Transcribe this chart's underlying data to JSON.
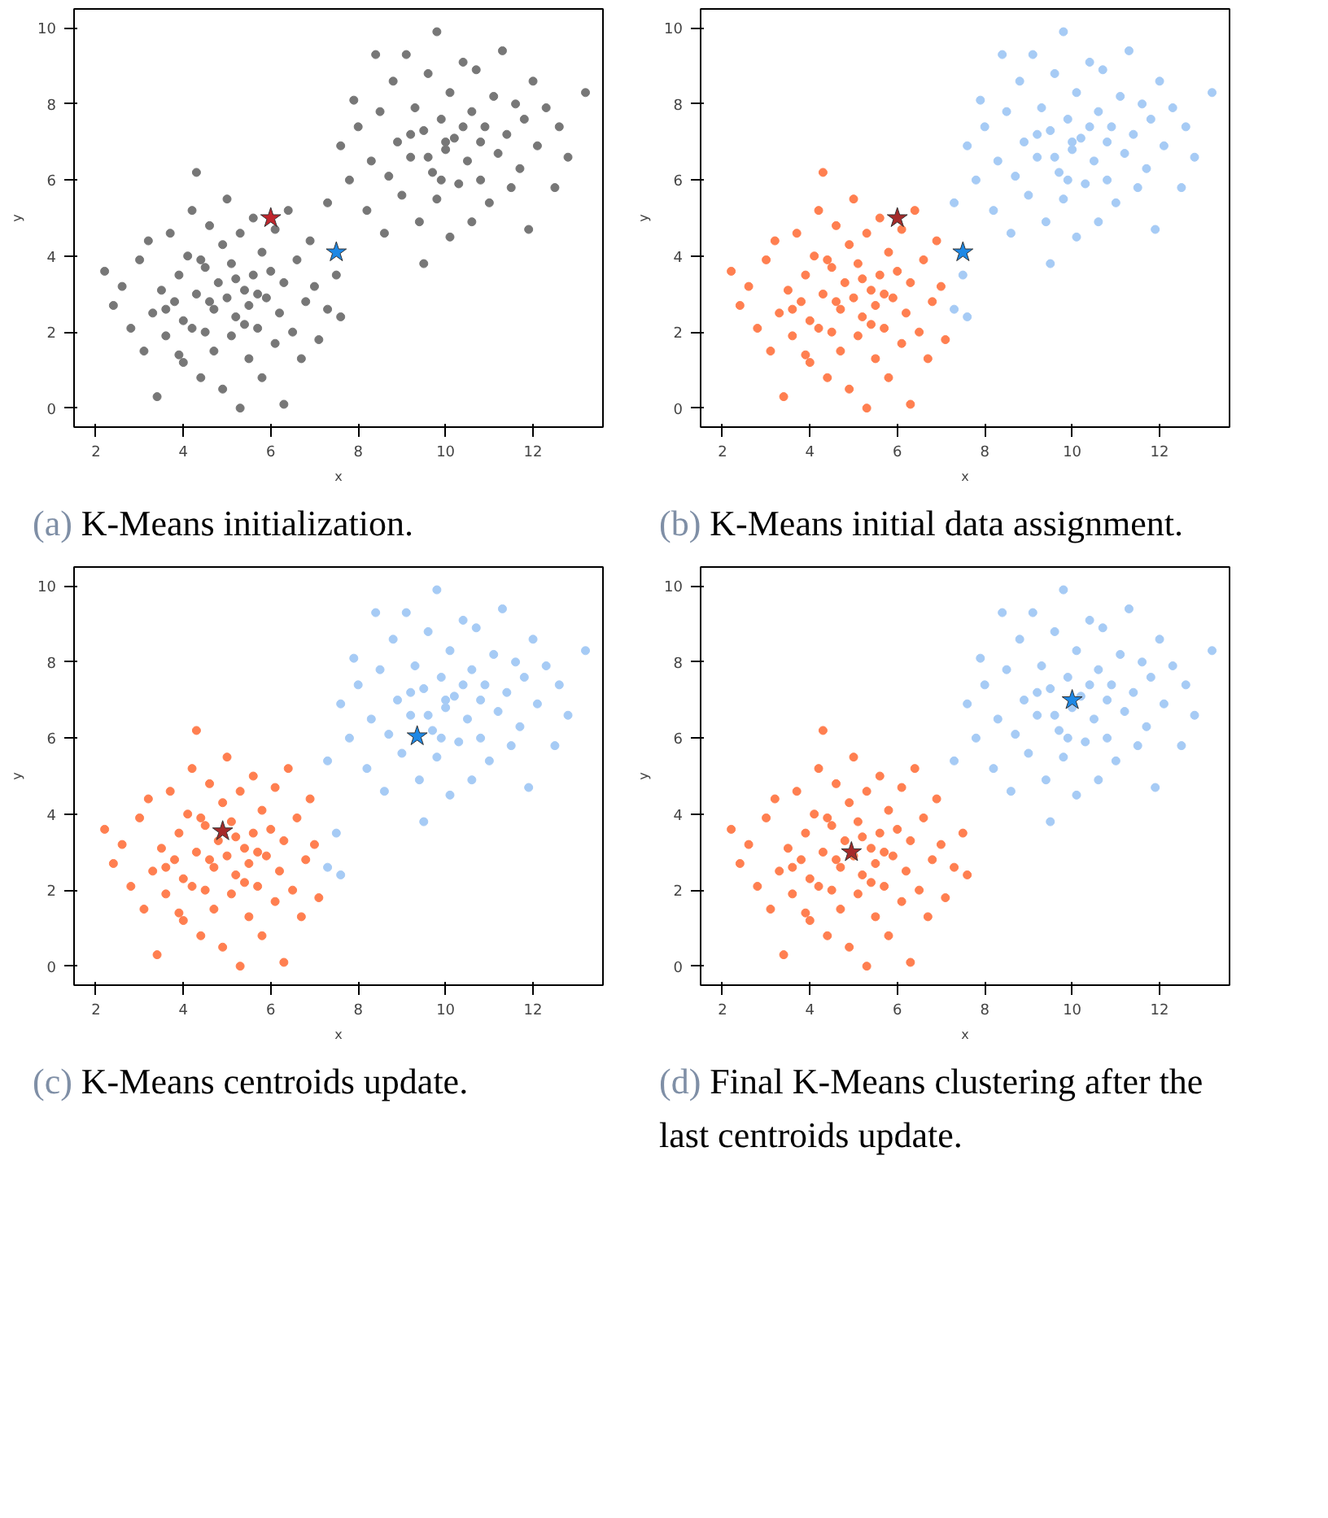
{
  "chart_data": [
    {
      "type": "scatter",
      "xlabel": "x",
      "ylabel": "y",
      "xlim": [
        1.5,
        13.6
      ],
      "ylim": [
        -0.5,
        10.5
      ],
      "xticks": [
        2,
        4,
        6,
        8,
        10,
        12
      ],
      "yticks": [
        0,
        2,
        4,
        6,
        8,
        10
      ],
      "annotations": [
        "(a) K-Means initialization."
      ],
      "series": [
        {
          "color": "#777777",
          "marker": "circle",
          "x": [
            2.2,
            2.4,
            2.6,
            2.8,
            3.0,
            3.1,
            3.2,
            3.3,
            3.4,
            3.5,
            3.6,
            3.7,
            3.8,
            3.9,
            4.0,
            4.0,
            4.1,
            4.2,
            4.3,
            4.3,
            4.4,
            4.5,
            4.5,
            4.6,
            4.7,
            4.7,
            4.8,
            4.9,
            4.9,
            5.0,
            5.0,
            5.1,
            5.1,
            5.2,
            5.3,
            5.3,
            5.4,
            5.5,
            5.5,
            5.6,
            5.6,
            5.7,
            5.8,
            5.8,
            5.9,
            6.0,
            6.1,
            6.1,
            6.2,
            6.3,
            6.3,
            6.4,
            6.5,
            6.6,
            6.7,
            6.8,
            6.9,
            7.0,
            7.1,
            7.3,
            7.5,
            7.6,
            3.9,
            4.4,
            5.2,
            4.6,
            5.7,
            3.6,
            4.2,
            5.4,
            7.3,
            7.6,
            7.8,
            7.9,
            8.0,
            8.2,
            8.3,
            8.4,
            8.5,
            8.6,
            8.7,
            8.8,
            8.9,
            9.0,
            9.1,
            9.2,
            9.3,
            9.4,
            9.5,
            9.5,
            9.6,
            9.7,
            9.8,
            9.8,
            9.9,
            10.0,
            10.1,
            10.1,
            10.2,
            10.3,
            10.4,
            10.5,
            10.6,
            10.6,
            10.7,
            10.8,
            10.9,
            11.0,
            11.1,
            11.2,
            11.3,
            11.4,
            11.5,
            11.6,
            11.7,
            11.8,
            11.9,
            12.0,
            12.1,
            12.3,
            12.5,
            12.6,
            12.8,
            13.2,
            10.0,
            9.6,
            10.4,
            9.2,
            10.8,
            9.9
          ],
          "values": [
            3.6,
            2.7,
            3.2,
            2.1,
            3.9,
            1.5,
            4.4,
            2.5,
            0.3,
            3.1,
            1.9,
            4.6,
            2.8,
            3.5,
            1.2,
            2.3,
            4.0,
            5.2,
            6.2,
            3.0,
            0.8,
            2.0,
            3.7,
            4.8,
            2.6,
            1.5,
            3.3,
            0.5,
            4.3,
            2.9,
            5.5,
            1.9,
            3.8,
            2.4,
            0.0,
            4.6,
            3.1,
            1.3,
            2.7,
            5.0,
            3.5,
            2.1,
            4.1,
            0.8,
            2.9,
            3.6,
            1.7,
            4.7,
            2.5,
            0.1,
            3.3,
            5.2,
            2.0,
            3.9,
            1.3,
            2.8,
            4.4,
            3.2,
            1.8,
            2.6,
            3.5,
            2.4,
            1.4,
            3.9,
            3.4,
            2.8,
            3.0,
            2.6,
            2.1,
            2.2,
            5.4,
            6.9,
            6.0,
            8.1,
            7.4,
            5.2,
            6.5,
            9.3,
            7.8,
            4.6,
            6.1,
            8.6,
            7.0,
            5.6,
            9.3,
            6.6,
            7.9,
            4.9,
            3.8,
            7.3,
            8.8,
            6.2,
            9.9,
            5.5,
            7.6,
            6.8,
            8.3,
            4.5,
            7.1,
            5.9,
            9.1,
            6.5,
            7.8,
            4.9,
            8.9,
            6.0,
            7.4,
            5.4,
            8.2,
            6.7,
            9.4,
            7.2,
            5.8,
            8.0,
            6.3,
            7.6,
            4.7,
            8.6,
            6.9,
            7.9,
            5.8,
            7.4,
            6.6,
            8.3,
            7.0,
            6.6,
            7.4,
            7.2,
            7.0,
            6.0
          ]
        },
        {
          "color": "#c0262d",
          "marker": "star",
          "x": [
            6.0
          ],
          "values": [
            5.0
          ]
        },
        {
          "color": "#1e88e5",
          "marker": "star",
          "x": [
            7.5
          ],
          "values": [
            4.1
          ]
        }
      ]
    },
    {
      "type": "scatter",
      "xlabel": "x",
      "ylabel": "y",
      "xlim": [
        1.5,
        13.6
      ],
      "ylim": [
        -0.5,
        10.5
      ],
      "xticks": [
        2,
        4,
        6,
        8,
        10,
        12
      ],
      "yticks": [
        0,
        2,
        4,
        6,
        8,
        10
      ],
      "annotations": [
        "(b) K-Means initial data assignment."
      ],
      "series": [
        {
          "color": "#ff7f50",
          "marker": "circle",
          "x": [
            2.2,
            2.4,
            2.6,
            2.8,
            3.0,
            3.1,
            3.2,
            3.3,
            3.4,
            3.5,
            3.6,
            3.7,
            3.8,
            3.9,
            4.0,
            4.0,
            4.1,
            4.2,
            4.3,
            4.3,
            4.4,
            4.5,
            4.5,
            4.6,
            4.7,
            4.7,
            4.8,
            4.9,
            4.9,
            5.0,
            5.0,
            5.1,
            5.1,
            5.2,
            5.3,
            5.3,
            5.4,
            5.5,
            5.5,
            5.6,
            5.6,
            5.7,
            5.8,
            5.8,
            5.9,
            6.0,
            6.1,
            6.1,
            6.2,
            6.3,
            6.3,
            6.4,
            6.5,
            6.6,
            6.7,
            6.8,
            6.9,
            7.0,
            7.1,
            3.9,
            4.4,
            5.2,
            4.6,
            5.7,
            3.6,
            4.2,
            5.4
          ],
          "values": [
            3.6,
            2.7,
            3.2,
            2.1,
            3.9,
            1.5,
            4.4,
            2.5,
            0.3,
            3.1,
            1.9,
            4.6,
            2.8,
            3.5,
            1.2,
            2.3,
            4.0,
            5.2,
            6.2,
            3.0,
            0.8,
            2.0,
            3.7,
            4.8,
            2.6,
            1.5,
            3.3,
            0.5,
            4.3,
            2.9,
            5.5,
            1.9,
            3.8,
            2.4,
            0.0,
            4.6,
            3.1,
            1.3,
            2.7,
            5.0,
            3.5,
            2.1,
            4.1,
            0.8,
            2.9,
            3.6,
            1.7,
            4.7,
            2.5,
            0.1,
            3.3,
            5.2,
            2.0,
            3.9,
            1.3,
            2.8,
            4.4,
            3.2,
            1.8,
            1.4,
            3.9,
            3.4,
            2.8,
            3.0,
            2.6,
            2.1,
            2.2
          ]
        },
        {
          "color": "#a6cbf5",
          "marker": "circle",
          "x": [
            7.3,
            7.5,
            7.6,
            7.3,
            7.6,
            7.8,
            7.9,
            8.0,
            8.2,
            8.3,
            8.4,
            8.5,
            8.6,
            8.7,
            8.8,
            8.9,
            9.0,
            9.1,
            9.2,
            9.3,
            9.4,
            9.5,
            9.5,
            9.6,
            9.7,
            9.8,
            9.8,
            9.9,
            10.0,
            10.1,
            10.1,
            10.2,
            10.3,
            10.4,
            10.5,
            10.6,
            10.6,
            10.7,
            10.8,
            10.9,
            11.0,
            11.1,
            11.2,
            11.3,
            11.4,
            11.5,
            11.6,
            11.7,
            11.8,
            11.9,
            12.0,
            12.1,
            12.3,
            12.5,
            12.6,
            12.8,
            13.2,
            10.0,
            9.6,
            10.4,
            9.2,
            10.8,
            9.9
          ],
          "values": [
            2.6,
            3.5,
            2.4,
            5.4,
            6.9,
            6.0,
            8.1,
            7.4,
            5.2,
            6.5,
            9.3,
            7.8,
            4.6,
            6.1,
            8.6,
            7.0,
            5.6,
            9.3,
            6.6,
            7.9,
            4.9,
            3.8,
            7.3,
            8.8,
            6.2,
            9.9,
            5.5,
            7.6,
            6.8,
            8.3,
            4.5,
            7.1,
            5.9,
            9.1,
            6.5,
            7.8,
            4.9,
            8.9,
            6.0,
            7.4,
            5.4,
            8.2,
            6.7,
            9.4,
            7.2,
            5.8,
            8.0,
            6.3,
            7.6,
            4.7,
            8.6,
            6.9,
            7.9,
            5.8,
            7.4,
            6.6,
            8.3,
            7.0,
            6.6,
            7.4,
            7.2,
            7.0,
            6.0
          ]
        },
        {
          "color": "#a52a2a",
          "marker": "star",
          "x": [
            6.0
          ],
          "values": [
            5.0
          ]
        },
        {
          "color": "#1e88e5",
          "marker": "star",
          "x": [
            7.5
          ],
          "values": [
            4.1
          ]
        }
      ]
    },
    {
      "type": "scatter",
      "xlabel": "x",
      "ylabel": "y",
      "xlim": [
        1.5,
        13.6
      ],
      "ylim": [
        -0.5,
        10.5
      ],
      "xticks": [
        2,
        4,
        6,
        8,
        10,
        12
      ],
      "yticks": [
        0,
        2,
        4,
        6,
        8,
        10
      ],
      "annotations": [
        "(c) K-Means centroids update."
      ],
      "series": [
        {
          "color": "#ff7f50",
          "marker": "circle",
          "x": [
            2.2,
            2.4,
            2.6,
            2.8,
            3.0,
            3.1,
            3.2,
            3.3,
            3.4,
            3.5,
            3.6,
            3.7,
            3.8,
            3.9,
            4.0,
            4.0,
            4.1,
            4.2,
            4.3,
            4.3,
            4.4,
            4.5,
            4.5,
            4.6,
            4.7,
            4.7,
            4.8,
            4.9,
            4.9,
            5.0,
            5.0,
            5.1,
            5.1,
            5.2,
            5.3,
            5.3,
            5.4,
            5.5,
            5.5,
            5.6,
            5.6,
            5.7,
            5.8,
            5.8,
            5.9,
            6.0,
            6.1,
            6.1,
            6.2,
            6.3,
            6.3,
            6.4,
            6.5,
            6.6,
            6.7,
            6.8,
            6.9,
            7.0,
            7.1,
            3.9,
            4.4,
            5.2,
            4.6,
            5.7,
            3.6,
            4.2,
            5.4
          ],
          "values": [
            3.6,
            2.7,
            3.2,
            2.1,
            3.9,
            1.5,
            4.4,
            2.5,
            0.3,
            3.1,
            1.9,
            4.6,
            2.8,
            3.5,
            1.2,
            2.3,
            4.0,
            5.2,
            6.2,
            3.0,
            0.8,
            2.0,
            3.7,
            4.8,
            2.6,
            1.5,
            3.3,
            0.5,
            4.3,
            2.9,
            5.5,
            1.9,
            3.8,
            2.4,
            0.0,
            4.6,
            3.1,
            1.3,
            2.7,
            5.0,
            3.5,
            2.1,
            4.1,
            0.8,
            2.9,
            3.6,
            1.7,
            4.7,
            2.5,
            0.1,
            3.3,
            5.2,
            2.0,
            3.9,
            1.3,
            2.8,
            4.4,
            3.2,
            1.8,
            1.4,
            3.9,
            3.4,
            2.8,
            3.0,
            2.6,
            2.1,
            2.2
          ]
        },
        {
          "color": "#a6cbf5",
          "marker": "circle",
          "x": [
            7.3,
            7.5,
            7.6,
            7.3,
            7.6,
            7.8,
            7.9,
            8.0,
            8.2,
            8.3,
            8.4,
            8.5,
            8.6,
            8.7,
            8.8,
            8.9,
            9.0,
            9.1,
            9.2,
            9.3,
            9.4,
            9.5,
            9.5,
            9.6,
            9.7,
            9.8,
            9.8,
            9.9,
            10.0,
            10.1,
            10.1,
            10.2,
            10.3,
            10.4,
            10.5,
            10.6,
            10.6,
            10.7,
            10.8,
            10.9,
            11.0,
            11.1,
            11.2,
            11.3,
            11.4,
            11.5,
            11.6,
            11.7,
            11.8,
            11.9,
            12.0,
            12.1,
            12.3,
            12.5,
            12.6,
            12.8,
            13.2,
            10.0,
            9.6,
            10.4,
            9.2,
            10.8,
            9.9
          ],
          "values": [
            2.6,
            3.5,
            2.4,
            5.4,
            6.9,
            6.0,
            8.1,
            7.4,
            5.2,
            6.5,
            9.3,
            7.8,
            4.6,
            6.1,
            8.6,
            7.0,
            5.6,
            9.3,
            6.6,
            7.9,
            4.9,
            3.8,
            7.3,
            8.8,
            6.2,
            9.9,
            5.5,
            7.6,
            6.8,
            8.3,
            4.5,
            7.1,
            5.9,
            9.1,
            6.5,
            7.8,
            4.9,
            8.9,
            6.0,
            7.4,
            5.4,
            8.2,
            6.7,
            9.4,
            7.2,
            5.8,
            8.0,
            6.3,
            7.6,
            4.7,
            8.6,
            6.9,
            7.9,
            5.8,
            7.4,
            6.6,
            8.3,
            7.0,
            6.6,
            7.4,
            7.2,
            7.0,
            6.0
          ]
        },
        {
          "color": "#a52a2a",
          "marker": "star",
          "x": [
            4.9
          ],
          "values": [
            3.55
          ]
        },
        {
          "color": "#1e88e5",
          "marker": "star",
          "x": [
            9.35
          ],
          "values": [
            6.05
          ]
        }
      ]
    },
    {
      "type": "scatter",
      "xlabel": "x",
      "ylabel": "y",
      "xlim": [
        1.5,
        13.6
      ],
      "ylim": [
        -0.5,
        10.5
      ],
      "xticks": [
        2,
        4,
        6,
        8,
        10,
        12
      ],
      "yticks": [
        0,
        2,
        4,
        6,
        8,
        10
      ],
      "annotations": [
        "(d) Final K-Means clustering after the last centroids update."
      ],
      "series": [
        {
          "color": "#ff7f50",
          "marker": "circle",
          "x": [
            2.2,
            2.4,
            2.6,
            2.8,
            3.0,
            3.1,
            3.2,
            3.3,
            3.4,
            3.5,
            3.6,
            3.7,
            3.8,
            3.9,
            4.0,
            4.0,
            4.1,
            4.2,
            4.3,
            4.3,
            4.4,
            4.5,
            4.5,
            4.6,
            4.7,
            4.7,
            4.8,
            4.9,
            4.9,
            5.0,
            5.0,
            5.1,
            5.1,
            5.2,
            5.3,
            5.3,
            5.4,
            5.5,
            5.5,
            5.6,
            5.6,
            5.7,
            5.8,
            5.8,
            5.9,
            6.0,
            6.1,
            6.1,
            6.2,
            6.3,
            6.3,
            6.4,
            6.5,
            6.6,
            6.7,
            6.8,
            6.9,
            7.0,
            7.1,
            7.3,
            7.5,
            7.6,
            3.9,
            4.4,
            5.2,
            4.6,
            5.7,
            3.6,
            4.2,
            5.4
          ],
          "values": [
            3.6,
            2.7,
            3.2,
            2.1,
            3.9,
            1.5,
            4.4,
            2.5,
            0.3,
            3.1,
            1.9,
            4.6,
            2.8,
            3.5,
            1.2,
            2.3,
            4.0,
            5.2,
            6.2,
            3.0,
            0.8,
            2.0,
            3.7,
            4.8,
            2.6,
            1.5,
            3.3,
            0.5,
            4.3,
            2.9,
            5.5,
            1.9,
            3.8,
            2.4,
            0.0,
            4.6,
            3.1,
            1.3,
            2.7,
            5.0,
            3.5,
            2.1,
            4.1,
            0.8,
            2.9,
            3.6,
            1.7,
            4.7,
            2.5,
            0.1,
            3.3,
            5.2,
            2.0,
            3.9,
            1.3,
            2.8,
            4.4,
            3.2,
            1.8,
            2.6,
            3.5,
            2.4,
            1.4,
            3.9,
            3.4,
            2.8,
            3.0,
            2.6,
            2.1,
            2.2
          ]
        },
        {
          "color": "#a6cbf5",
          "marker": "circle",
          "x": [
            7.3,
            7.6,
            7.8,
            7.9,
            8.0,
            8.2,
            8.3,
            8.4,
            8.5,
            8.6,
            8.7,
            8.8,
            8.9,
            9.0,
            9.1,
            9.2,
            9.3,
            9.4,
            9.5,
            9.5,
            9.6,
            9.7,
            9.8,
            9.8,
            9.9,
            10.0,
            10.1,
            10.1,
            10.2,
            10.3,
            10.4,
            10.5,
            10.6,
            10.6,
            10.7,
            10.8,
            10.9,
            11.0,
            11.1,
            11.2,
            11.3,
            11.4,
            11.5,
            11.6,
            11.7,
            11.8,
            11.9,
            12.0,
            12.1,
            12.3,
            12.5,
            12.6,
            12.8,
            13.2,
            9.6,
            10.4,
            9.2,
            10.8,
            9.9
          ],
          "values": [
            5.4,
            6.9,
            6.0,
            8.1,
            7.4,
            5.2,
            6.5,
            9.3,
            7.8,
            4.6,
            6.1,
            8.6,
            7.0,
            5.6,
            9.3,
            6.6,
            7.9,
            4.9,
            3.8,
            7.3,
            8.8,
            6.2,
            9.9,
            5.5,
            7.6,
            6.8,
            8.3,
            4.5,
            7.1,
            5.9,
            9.1,
            6.5,
            7.8,
            4.9,
            8.9,
            6.0,
            7.4,
            5.4,
            8.2,
            6.7,
            9.4,
            7.2,
            5.8,
            8.0,
            6.3,
            7.6,
            4.7,
            8.6,
            6.9,
            7.9,
            5.8,
            7.4,
            6.6,
            8.3,
            6.6,
            7.4,
            7.2,
            7.0,
            6.0
          ]
        },
        {
          "color": "#a52a2a",
          "marker": "star",
          "x": [
            4.95
          ],
          "values": [
            3.0
          ]
        },
        {
          "color": "#1e88e5",
          "marker": "star",
          "x": [
            10.0
          ],
          "values": [
            7.0
          ]
        }
      ]
    }
  ]
}
